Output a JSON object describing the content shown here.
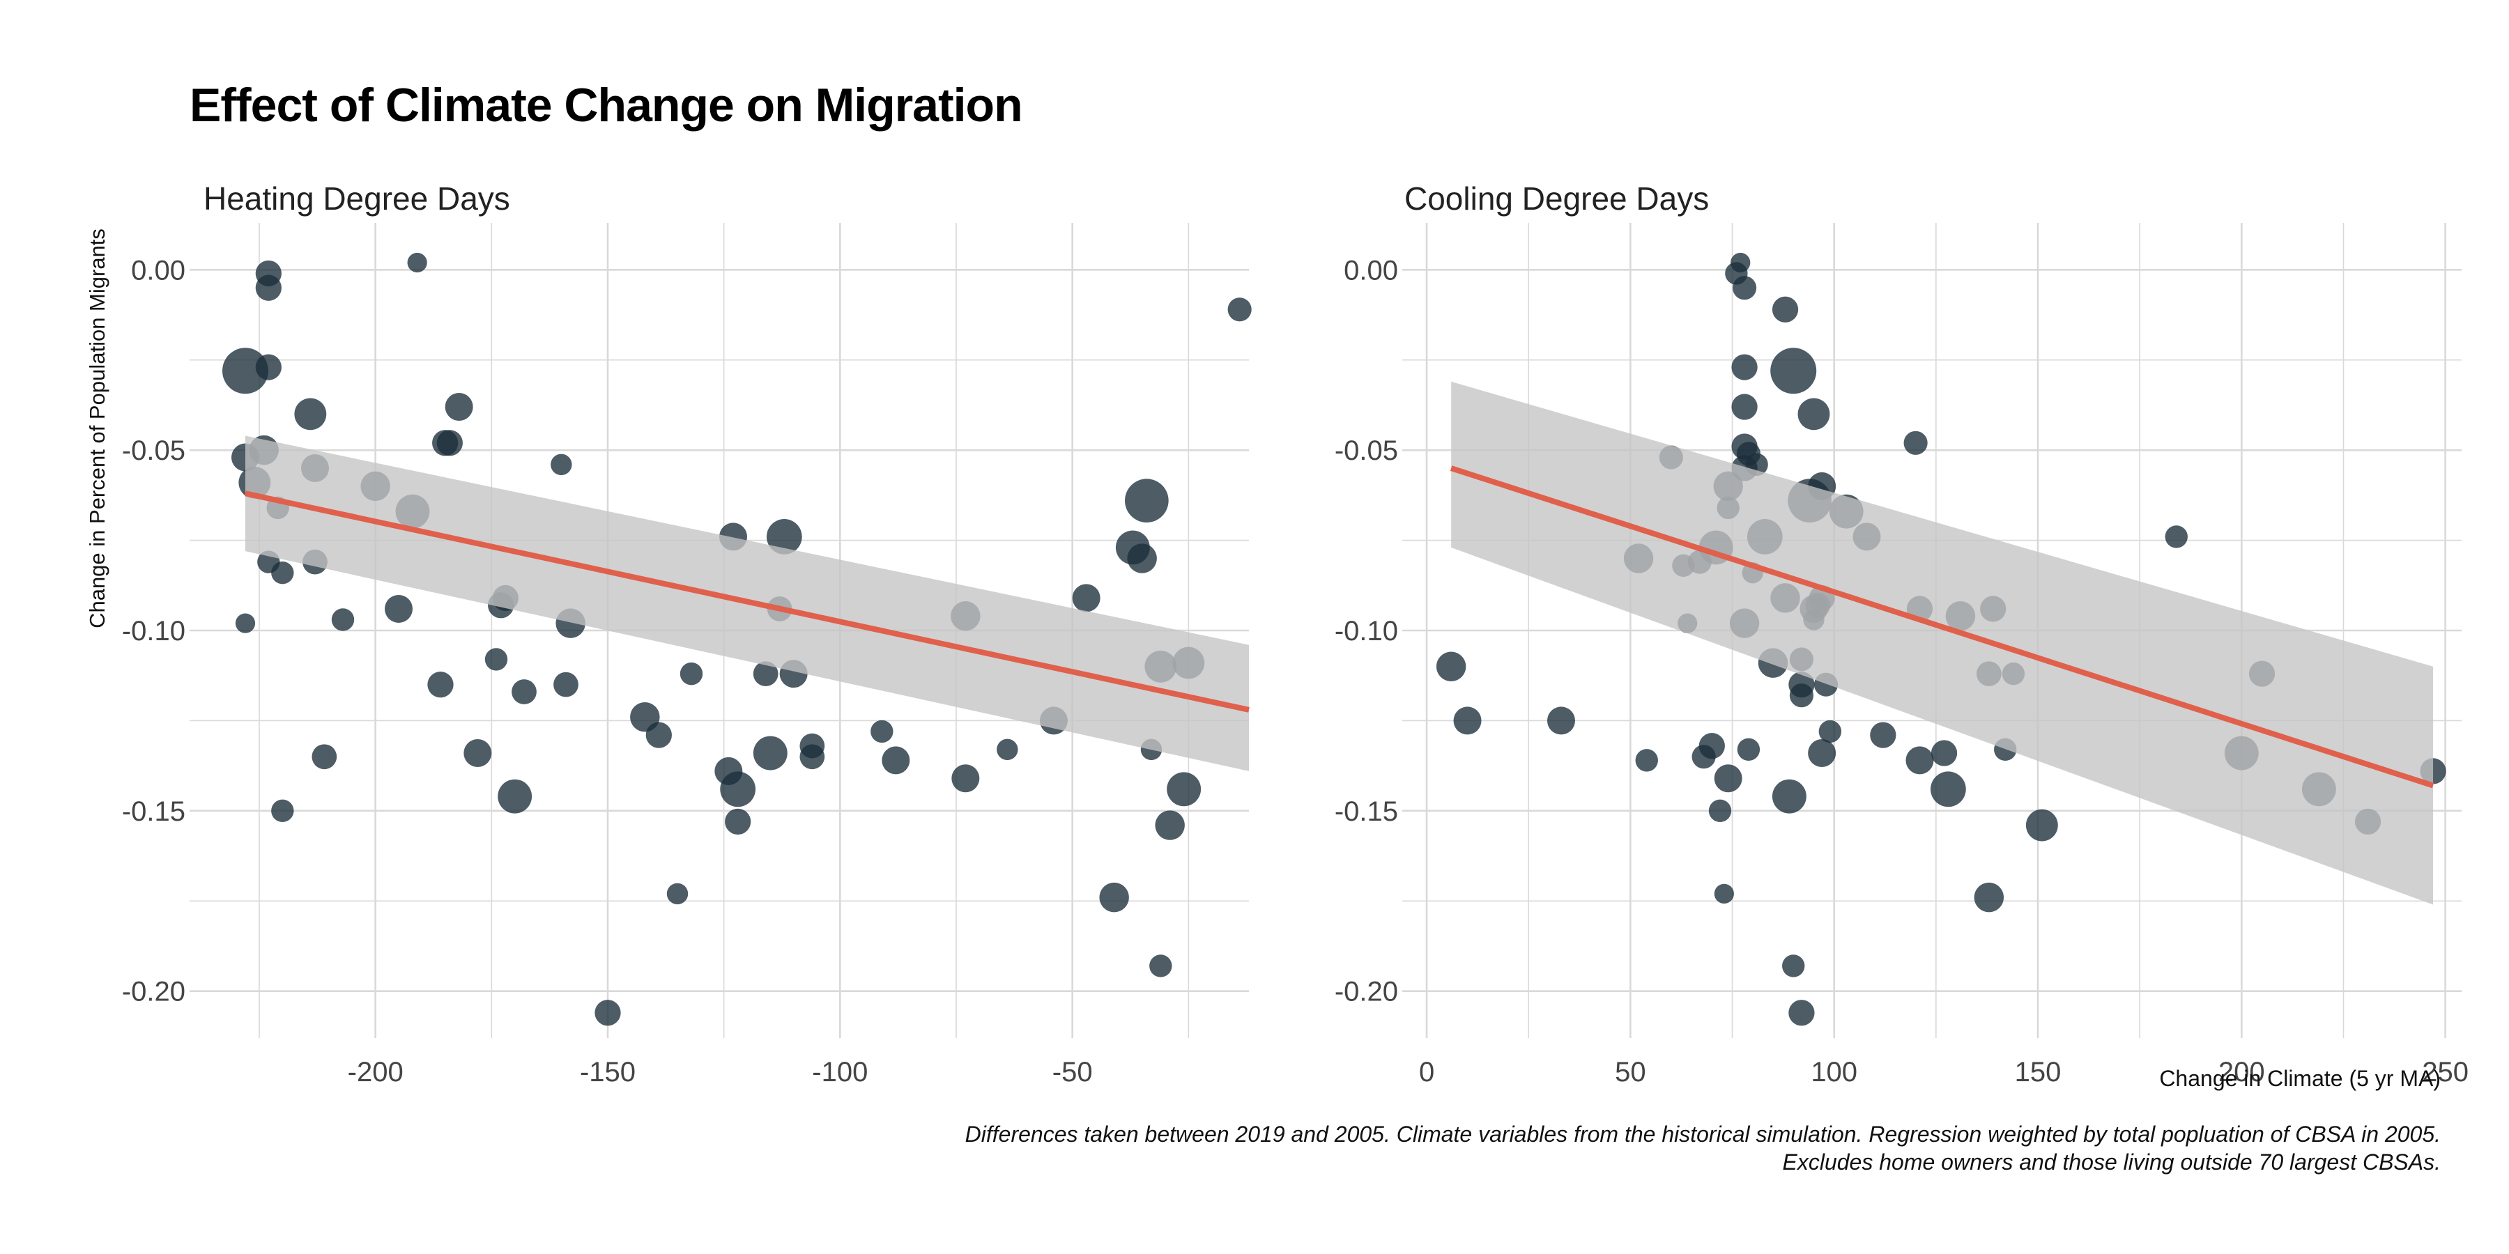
{
  "title": "Effect of Climate Change on Migration",
  "ylabel": "Change in Percent of Population Migrants",
  "xlabel": "Change in Climate (5 yr MA)",
  "caption": {
    "line1": "Differences taken between 2019 and 2005. Climate variables from the historical simulation. Regression weighted by total popluation of CBSA in 2005.",
    "line2": "Excludes home owners and those living outside 70 largest CBSAs."
  },
  "colors": {
    "point": "#1b2e3a",
    "fit": "#e0604c",
    "ribbon": "#c4c4c4",
    "grid": "#d9d9d9"
  },
  "chart_data": [
    {
      "type": "scatter",
      "subtitle": "Heating Degree Days",
      "xlim": [
        -240,
        -12
      ],
      "ylim": [
        -0.213,
        0.013
      ],
      "xticks": [
        -200,
        -150,
        -100,
        -50
      ],
      "xtick_labels": [
        "-200",
        "-150",
        "-100",
        "-50"
      ],
      "yticks": [
        0,
        -0.05,
        -0.1,
        -0.15,
        -0.2
      ],
      "ytick_labels": [
        "0.00",
        "-0.05",
        "-0.10",
        "-0.15",
        "-0.20"
      ],
      "grid": true,
      "fit": {
        "x": [
          -228,
          -12
        ],
        "y": [
          -0.062,
          -0.122
        ],
        "lower": [
          -0.078,
          -0.139
        ],
        "upper": [
          -0.046,
          -0.104
        ]
      },
      "points": [
        {
          "x": -228,
          "y": -0.028,
          "size": 4
        },
        {
          "x": -228,
          "y": -0.052,
          "size": 1
        },
        {
          "x": -228,
          "y": -0.098,
          "size": 0.3
        },
        {
          "x": -226,
          "y": -0.059,
          "size": 1.5
        },
        {
          "x": -224,
          "y": -0.05,
          "size": 1.2
        },
        {
          "x": -223,
          "y": -0.001,
          "size": 0.8
        },
        {
          "x": -223,
          "y": -0.005,
          "size": 0.8
        },
        {
          "x": -223,
          "y": -0.027,
          "size": 0.8
        },
        {
          "x": -223,
          "y": -0.081,
          "size": 0.5
        },
        {
          "x": -221,
          "y": -0.066,
          "size": 0.5
        },
        {
          "x": -220,
          "y": -0.084,
          "size": 0.5
        },
        {
          "x": -220,
          "y": -0.15,
          "size": 0.5
        },
        {
          "x": -214,
          "y": -0.04,
          "size": 1.5
        },
        {
          "x": -213,
          "y": -0.055,
          "size": 1
        },
        {
          "x": -213,
          "y": -0.081,
          "size": 0.7
        },
        {
          "x": -211,
          "y": -0.135,
          "size": 0.7
        },
        {
          "x": -207,
          "y": -0.097,
          "size": 0.5
        },
        {
          "x": -200,
          "y": -0.06,
          "size": 1.2
        },
        {
          "x": -195,
          "y": -0.094,
          "size": 1
        },
        {
          "x": -192,
          "y": -0.067,
          "size": 1.8
        },
        {
          "x": -191,
          "y": 0.002,
          "size": 0.3
        },
        {
          "x": -186,
          "y": -0.115,
          "size": 0.8
        },
        {
          "x": -185,
          "y": -0.048,
          "size": 0.8
        },
        {
          "x": -184,
          "y": -0.048,
          "size": 0.8
        },
        {
          "x": -182,
          "y": -0.038,
          "size": 1
        },
        {
          "x": -178,
          "y": -0.134,
          "size": 1
        },
        {
          "x": -174,
          "y": -0.108,
          "size": 0.5
        },
        {
          "x": -173,
          "y": -0.093,
          "size": 0.8
        },
        {
          "x": -172,
          "y": -0.091,
          "size": 0.8
        },
        {
          "x": -170,
          "y": -0.146,
          "size": 1.8
        },
        {
          "x": -168,
          "y": -0.117,
          "size": 0.7
        },
        {
          "x": -160,
          "y": -0.054,
          "size": 0.4
        },
        {
          "x": -159,
          "y": -0.115,
          "size": 0.7
        },
        {
          "x": -158,
          "y": -0.098,
          "size": 1.2
        },
        {
          "x": -150,
          "y": -0.206,
          "size": 0.8
        },
        {
          "x": -142,
          "y": -0.124,
          "size": 1.2
        },
        {
          "x": -139,
          "y": -0.129,
          "size": 0.8
        },
        {
          "x": -135,
          "y": -0.173,
          "size": 0.4
        },
        {
          "x": -132,
          "y": -0.112,
          "size": 0.5
        },
        {
          "x": -124,
          "y": -0.139,
          "size": 1
        },
        {
          "x": -123,
          "y": -0.074,
          "size": 1
        },
        {
          "x": -122,
          "y": -0.144,
          "size": 2
        },
        {
          "x": -122,
          "y": -0.153,
          "size": 0.8
        },
        {
          "x": -116,
          "y": -0.112,
          "size": 0.7
        },
        {
          "x": -115,
          "y": -0.134,
          "size": 1.8
        },
        {
          "x": -113,
          "y": -0.094,
          "size": 0.7
        },
        {
          "x": -112,
          "y": -0.074,
          "size": 2
        },
        {
          "x": -110,
          "y": -0.112,
          "size": 1
        },
        {
          "x": -106,
          "y": -0.135,
          "size": 0.7
        },
        {
          "x": -106,
          "y": -0.132,
          "size": 0.7
        },
        {
          "x": -91,
          "y": -0.128,
          "size": 0.5
        },
        {
          "x": -88,
          "y": -0.136,
          "size": 1
        },
        {
          "x": -73,
          "y": -0.096,
          "size": 1.2
        },
        {
          "x": -73,
          "y": -0.141,
          "size": 1
        },
        {
          "x": -64,
          "y": -0.133,
          "size": 0.4
        },
        {
          "x": -54,
          "y": -0.125,
          "size": 1
        },
        {
          "x": -47,
          "y": -0.091,
          "size": 1
        },
        {
          "x": -41,
          "y": -0.174,
          "size": 1.2
        },
        {
          "x": -37,
          "y": -0.077,
          "size": 1.8
        },
        {
          "x": -35,
          "y": -0.08,
          "size": 1.2
        },
        {
          "x": -34,
          "y": -0.064,
          "size": 3.5
        },
        {
          "x": -33,
          "y": -0.133,
          "size": 0.4
        },
        {
          "x": -31,
          "y": -0.11,
          "size": 1.5
        },
        {
          "x": -31,
          "y": -0.193,
          "size": 0.5
        },
        {
          "x": -29,
          "y": -0.154,
          "size": 1.2
        },
        {
          "x": -26,
          "y": -0.144,
          "size": 1.8
        },
        {
          "x": -25,
          "y": -0.109,
          "size": 1.5
        },
        {
          "x": -14,
          "y": -0.011,
          "size": 0.6
        }
      ]
    },
    {
      "type": "scatter",
      "subtitle": "Cooling Degree Days",
      "xlim": [
        -6,
        254
      ],
      "ylim": [
        -0.213,
        0.013
      ],
      "xticks": [
        0,
        50,
        100,
        150,
        200,
        250
      ],
      "xtick_labels": [
        "0",
        "50",
        "100",
        "150",
        "200",
        "250"
      ],
      "yticks": [
        0,
        -0.05,
        -0.1,
        -0.15,
        -0.2
      ],
      "ytick_labels": [
        "0.00",
        "-0.05",
        "-0.10",
        "-0.15",
        "-0.20"
      ],
      "grid": true,
      "fit": {
        "x": [
          6,
          247
        ],
        "y": [
          -0.055,
          -0.143
        ],
        "lower": [
          -0.077,
          -0.176
        ],
        "upper": [
          -0.031,
          -0.11
        ]
      },
      "points": [
        {
          "x": 6,
          "y": -0.11,
          "size": 1.2
        },
        {
          "x": 10,
          "y": -0.125,
          "size": 1
        },
        {
          "x": 33,
          "y": -0.125,
          "size": 1
        },
        {
          "x": 52,
          "y": -0.08,
          "size": 1.2
        },
        {
          "x": 54,
          "y": -0.136,
          "size": 0.5
        },
        {
          "x": 60,
          "y": -0.052,
          "size": 0.6
        },
        {
          "x": 63,
          "y": -0.082,
          "size": 0.5
        },
        {
          "x": 64,
          "y": -0.098,
          "size": 0.3
        },
        {
          "x": 67,
          "y": -0.081,
          "size": 0.6
        },
        {
          "x": 68,
          "y": -0.135,
          "size": 0.6
        },
        {
          "x": 70,
          "y": -0.132,
          "size": 0.8
        },
        {
          "x": 71,
          "y": -0.077,
          "size": 1.8
        },
        {
          "x": 72,
          "y": -0.15,
          "size": 0.5
        },
        {
          "x": 73,
          "y": -0.173,
          "size": 0.3
        },
        {
          "x": 74,
          "y": -0.06,
          "size": 1.2
        },
        {
          "x": 74,
          "y": -0.066,
          "size": 0.5
        },
        {
          "x": 74,
          "y": -0.141,
          "size": 1
        },
        {
          "x": 76,
          "y": -0.001,
          "size": 0.5
        },
        {
          "x": 77,
          "y": 0.002,
          "size": 0.3
        },
        {
          "x": 78,
          "y": -0.005,
          "size": 0.6
        },
        {
          "x": 78,
          "y": -0.027,
          "size": 0.8
        },
        {
          "x": 78,
          "y": -0.038,
          "size": 0.8
        },
        {
          "x": 78,
          "y": -0.049,
          "size": 0.8
        },
        {
          "x": 78,
          "y": -0.055,
          "size": 0.8
        },
        {
          "x": 78,
          "y": -0.098,
          "size": 1.2
        },
        {
          "x": 79,
          "y": -0.051,
          "size": 0.6
        },
        {
          "x": 79,
          "y": -0.133,
          "size": 0.5
        },
        {
          "x": 80,
          "y": -0.084,
          "size": 0.4
        },
        {
          "x": 81,
          "y": -0.054,
          "size": 0.5
        },
        {
          "x": 83,
          "y": -0.074,
          "size": 2
        },
        {
          "x": 85,
          "y": -0.109,
          "size": 1.2
        },
        {
          "x": 88,
          "y": -0.011,
          "size": 0.8
        },
        {
          "x": 88,
          "y": -0.091,
          "size": 1.2
        },
        {
          "x": 89,
          "y": -0.146,
          "size": 1.8
        },
        {
          "x": 90,
          "y": -0.028,
          "size": 4
        },
        {
          "x": 90,
          "y": -0.193,
          "size": 0.5
        },
        {
          "x": 92,
          "y": -0.108,
          "size": 0.6
        },
        {
          "x": 92,
          "y": -0.115,
          "size": 0.8
        },
        {
          "x": 92,
          "y": -0.118,
          "size": 0.6
        },
        {
          "x": 92,
          "y": -0.206,
          "size": 0.8
        },
        {
          "x": 94,
          "y": -0.064,
          "size": 3.5
        },
        {
          "x": 95,
          "y": -0.04,
          "size": 1.5
        },
        {
          "x": 95,
          "y": -0.097,
          "size": 0.4
        },
        {
          "x": 95,
          "y": -0.094,
          "size": 1
        },
        {
          "x": 96,
          "y": -0.093,
          "size": 0.7
        },
        {
          "x": 97,
          "y": -0.06,
          "size": 1
        },
        {
          "x": 97,
          "y": -0.091,
          "size": 0.8
        },
        {
          "x": 97,
          "y": -0.134,
          "size": 1
        },
        {
          "x": 98,
          "y": -0.115,
          "size": 0.6
        },
        {
          "x": 99,
          "y": -0.128,
          "size": 0.5
        },
        {
          "x": 103,
          "y": -0.067,
          "size": 1.8
        },
        {
          "x": 108,
          "y": -0.074,
          "size": 1
        },
        {
          "x": 112,
          "y": -0.129,
          "size": 0.8
        },
        {
          "x": 120,
          "y": -0.048,
          "size": 0.6
        },
        {
          "x": 121,
          "y": -0.094,
          "size": 0.8
        },
        {
          "x": 121,
          "y": -0.136,
          "size": 1
        },
        {
          "x": 127,
          "y": -0.134,
          "size": 0.8
        },
        {
          "x": 128,
          "y": -0.144,
          "size": 2
        },
        {
          "x": 131,
          "y": -0.096,
          "size": 1.2
        },
        {
          "x": 138,
          "y": -0.112,
          "size": 0.7
        },
        {
          "x": 138,
          "y": -0.174,
          "size": 1.2
        },
        {
          "x": 139,
          "y": -0.094,
          "size": 0.8
        },
        {
          "x": 142,
          "y": -0.133,
          "size": 0.5
        },
        {
          "x": 144,
          "y": -0.112,
          "size": 0.5
        },
        {
          "x": 151,
          "y": -0.154,
          "size": 1.5
        },
        {
          "x": 184,
          "y": -0.074,
          "size": 0.5
        },
        {
          "x": 200,
          "y": -0.134,
          "size": 1.8
        },
        {
          "x": 205,
          "y": -0.112,
          "size": 0.8
        },
        {
          "x": 219,
          "y": -0.144,
          "size": 1.8
        },
        {
          "x": 231,
          "y": -0.153,
          "size": 0.8
        },
        {
          "x": 247,
          "y": -0.139,
          "size": 0.8
        }
      ]
    }
  ]
}
